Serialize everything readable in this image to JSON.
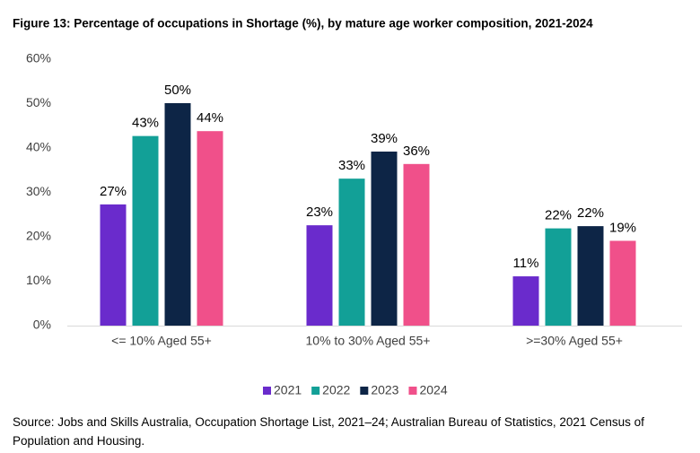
{
  "chart_data": {
    "type": "bar",
    "title": "Figure 13: Percentage of occupations in Shortage (%), by mature age worker composition, 2021-2024",
    "categories": [
      "<= 10% Aged 55+",
      "10% to 30% Aged 55+",
      ">=30% Aged 55+"
    ],
    "series": [
      {
        "name": "2021",
        "color": "#6a2bcc",
        "values": [
          27.3,
          22.6,
          11.1
        ],
        "value_labels": [
          "27%",
          "23%",
          "11%"
        ]
      },
      {
        "name": "2022",
        "color": "#12a097",
        "values": [
          42.7,
          33.1,
          21.9
        ],
        "value_labels": [
          "43%",
          "33%",
          "22%"
        ]
      },
      {
        "name": "2023",
        "color": "#0d2546",
        "values": [
          50.1,
          39.2,
          22.4
        ],
        "value_labels": [
          "50%",
          "39%",
          "22%"
        ]
      },
      {
        "name": "2024",
        "color": "#f0508a",
        "values": [
          43.8,
          36.4,
          19.1
        ],
        "value_labels": [
          "44%",
          "36%",
          "19%"
        ]
      }
    ],
    "ylim": [
      0,
      60
    ],
    "yticks": [
      {
        "value": 0,
        "label": "0%"
      },
      {
        "value": 10,
        "label": "10%"
      },
      {
        "value": 20,
        "label": "20%"
      },
      {
        "value": 30,
        "label": "30%"
      },
      {
        "value": 40,
        "label": "40%"
      },
      {
        "value": 50,
        "label": "50%"
      },
      {
        "value": 60,
        "label": "60%"
      }
    ],
    "grid": false,
    "legend": "bottom",
    "source": "Source: Jobs and Skills Australia, Occupation Shortage List, 2021–24; Australian Bureau of Statistics, 2021 Census of Population and Housing."
  }
}
